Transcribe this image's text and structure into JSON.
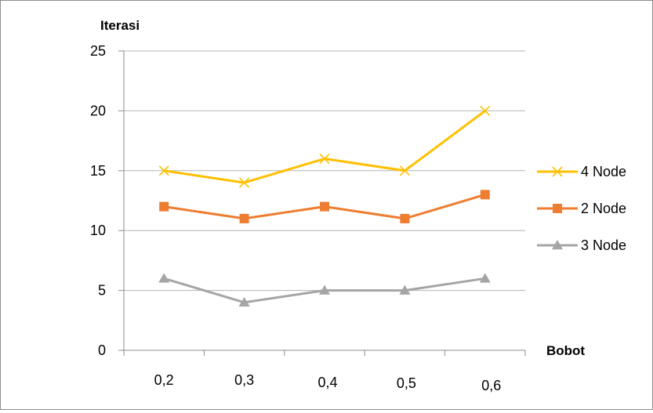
{
  "chart_data": {
    "type": "line",
    "ylabel": "Iterasi",
    "xlabel": "Bobot",
    "categories": [
      "0,2",
      "0,3",
      "0,4",
      "0,5",
      "0,6"
    ],
    "ylim": [
      0,
      25
    ],
    "yticks": [
      "0",
      "5",
      "10",
      "15",
      "20",
      "25"
    ],
    "grid": true,
    "legend_position": "right",
    "series": [
      {
        "name": "4 Node",
        "values": [
          15,
          14,
          16,
          15,
          20
        ],
        "color": "#FFC000",
        "marker": "x"
      },
      {
        "name": "2 Node",
        "values": [
          12,
          11,
          12,
          11,
          13
        ],
        "color": "#ED7D31",
        "marker": "square"
      },
      {
        "name": "3 Node",
        "values": [
          6,
          4,
          5,
          5,
          6
        ],
        "color": "#A5A5A5",
        "marker": "triangle"
      }
    ]
  }
}
